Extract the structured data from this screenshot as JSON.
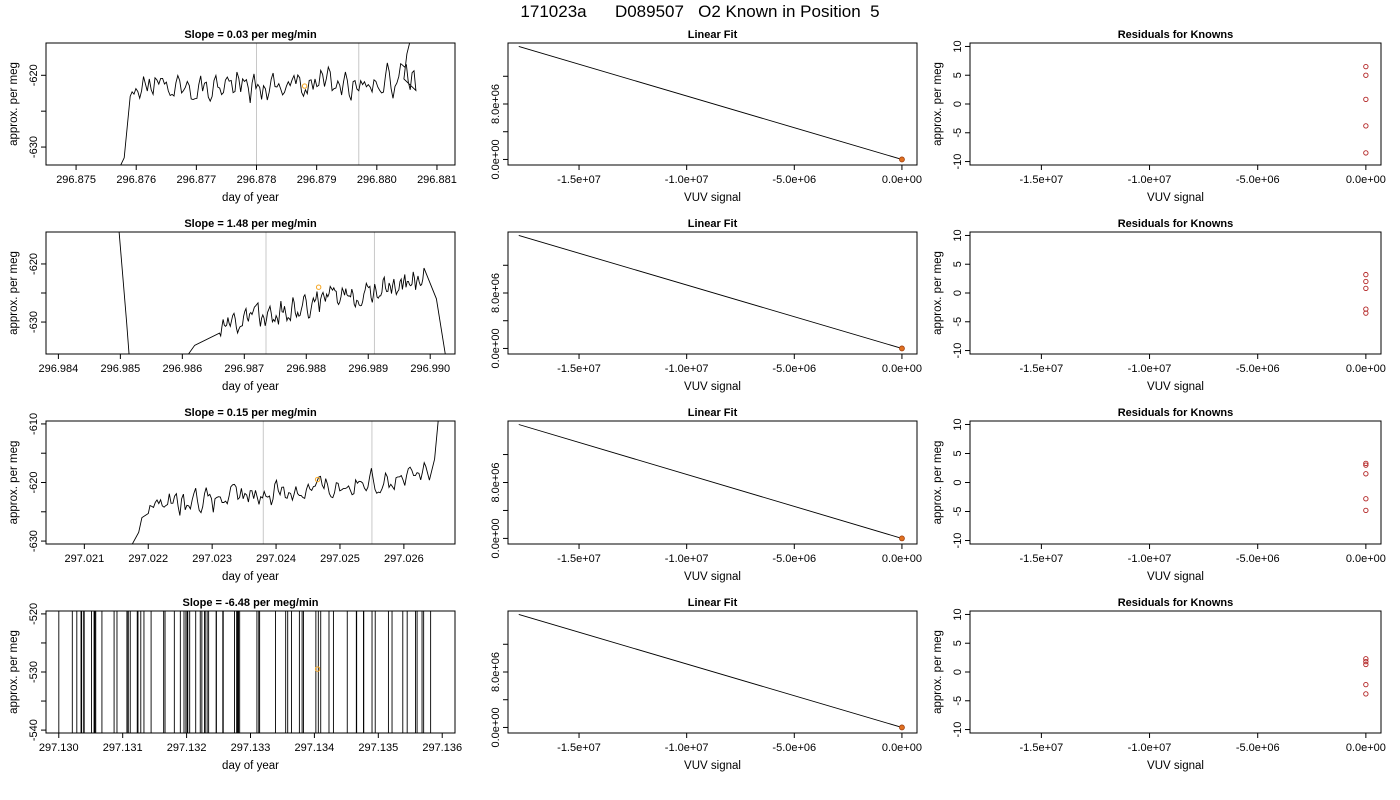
{
  "header": {
    "title": "171023a      D089507   O2 Known in Position  5"
  },
  "chart_data": [
    {
      "type": "line",
      "panel": "time-series",
      "title": "Slope =  0.03  per meg/min",
      "xlabel": "day of year",
      "ylabel": "approx. per meg",
      "xlim": [
        296.8745,
        296.8813
      ],
      "ylim": [
        -632.5,
        -615.5
      ],
      "xticks": [
        296.875,
        296.876,
        296.877,
        296.878,
        296.879,
        296.88,
        296.881
      ],
      "xtick_labels": [
        "296.875",
        "296.876",
        "296.877",
        "296.878",
        "296.879",
        "296.880",
        "296.881"
      ],
      "yticks": [
        -630,
        -625,
        -620
      ],
      "ytick_labels": [
        "-630",
        "",
        "-620"
      ],
      "vlines": [
        296.878,
        296.8797
      ],
      "series": [
        {
          "x0": 296.8759,
          "x1": 296.88065,
          "level": -621.2,
          "trend": 0.8,
          "noise": 1.8,
          "pts": 150,
          "start": [
            [
              296.8756,
              -635.0
            ],
            [
              296.8758,
              -631.5
            ]
          ],
          "end": [
            [
              296.88045,
              -620.5
            ],
            [
              296.8805,
              -617.0
            ],
            [
              296.88065,
              -612.0
            ]
          ]
        }
      ],
      "marker": {
        "x": 296.8788,
        "y": -621.5
      }
    },
    {
      "type": "line",
      "panel": "linear-fit",
      "title": "Linear Fit",
      "xlabel": "VUV signal",
      "ylabel": "",
      "xlim": [
        -18300000,
        700000
      ],
      "ylim": [
        -800000,
        16800000
      ],
      "xticks": [
        -15000000,
        -10000000,
        -5000000,
        0
      ],
      "xtick_labels": [
        "-1.5e+07",
        "-1.0e+07",
        "-5.0e+06",
        "0.0e+00"
      ],
      "yticks": [
        0,
        4000000,
        8000000,
        12000000
      ],
      "ytick_labels": [
        "0.0e+00",
        "",
        "8.0e+06",
        ""
      ],
      "fit_line": [
        [
          -17800000,
          16300000
        ],
        [
          0,
          0
        ]
      ],
      "points": [
        [
          0,
          0
        ]
      ]
    },
    {
      "type": "scatter",
      "panel": "residuals",
      "title": "Residuals for Knowns",
      "xlabel": "VUV signal",
      "ylabel": "approx. per meg",
      "xlim": [
        -18300000,
        700000
      ],
      "ylim": [
        -10.6,
        10.6
      ],
      "xticks": [
        -15000000,
        -10000000,
        -5000000,
        0
      ],
      "xtick_labels": [
        "-1.5e+07",
        "-1.0e+07",
        "-5.0e+06",
        "0.0e+00"
      ],
      "yticks": [
        -10,
        -5,
        0,
        5,
        10
      ],
      "ytick_labels": [
        "-10",
        "-5",
        "0",
        "5",
        "10"
      ],
      "points": [
        [
          0,
          6.5
        ],
        [
          0,
          5.0
        ],
        [
          0,
          0.8
        ],
        [
          0,
          -3.8
        ],
        [
          0,
          -8.5
        ]
      ]
    },
    {
      "type": "line",
      "panel": "time-series",
      "title": "Slope =  1.48  per meg/min",
      "xlabel": "day of year",
      "ylabel": "approx. per meg",
      "xlim": [
        296.9838,
        296.9904
      ],
      "ylim": [
        -635.5,
        -614.5
      ],
      "xticks": [
        296.984,
        296.985,
        296.986,
        296.987,
        296.988,
        296.989,
        296.99
      ],
      "xtick_labels": [
        "296.984",
        "296.985",
        "296.986",
        "296.987",
        "296.988",
        "296.989",
        "296.990"
      ],
      "yticks": [
        -630,
        -625,
        -620
      ],
      "ytick_labels": [
        "-630",
        "",
        "-620"
      ],
      "vlines": [
        296.98735,
        296.9891
      ],
      "series": [
        {
          "x0": 296.9866,
          "x1": 296.9899,
          "level": -626.5,
          "trend": 8.5,
          "noise": 1.7,
          "pts": 170,
          "start": [
            [
              296.98496,
              -612.0
            ],
            [
              296.9851,
              -630.0
            ],
            [
              296.98515,
              -637.0
            ],
            [
              296.986,
              -637.0
            ],
            [
              296.9862,
              -634.0
            ]
          ],
          "end": [
            [
              296.9901,
              -626.0
            ],
            [
              296.99028,
              -638.0
            ]
          ]
        }
      ],
      "marker": {
        "x": 296.9882,
        "y": -624.0
      }
    },
    {
      "type": "line",
      "panel": "linear-fit",
      "title": "Linear Fit",
      "xlabel": "VUV signal",
      "ylabel": "",
      "xlim": [
        -18300000,
        700000
      ],
      "ylim": [
        -800000,
        16800000
      ],
      "xticks": [
        -15000000,
        -10000000,
        -5000000,
        0
      ],
      "xtick_labels": [
        "-1.5e+07",
        "-1.0e+07",
        "-5.0e+06",
        "0.0e+00"
      ],
      "yticks": [
        0,
        4000000,
        8000000,
        12000000
      ],
      "ytick_labels": [
        "0.0e+00",
        "",
        "8.0e+06",
        ""
      ],
      "fit_line": [
        [
          -17800000,
          16300000
        ],
        [
          0,
          0
        ]
      ],
      "points": [
        [
          0,
          0
        ]
      ]
    },
    {
      "type": "scatter",
      "panel": "residuals",
      "title": "Residuals for Knowns",
      "xlabel": "VUV signal",
      "ylabel": "approx. per meg",
      "xlim": [
        -18300000,
        700000
      ],
      "ylim": [
        -10.6,
        10.6
      ],
      "xticks": [
        -15000000,
        -10000000,
        -5000000,
        0
      ],
      "xtick_labels": [
        "-1.5e+07",
        "-1.0e+07",
        "-5.0e+06",
        "0.0e+00"
      ],
      "yticks": [
        -10,
        -5,
        0,
        5,
        10
      ],
      "ytick_labels": [
        "-10",
        "-5",
        "0",
        "5",
        "10"
      ],
      "points": [
        [
          0,
          3.2
        ],
        [
          0,
          2.0
        ],
        [
          0,
          0.8
        ],
        [
          0,
          -2.8
        ],
        [
          0,
          -3.5
        ]
      ]
    },
    {
      "type": "line",
      "panel": "time-series",
      "title": "Slope =  0.15  per meg/min",
      "xlabel": "day of year",
      "ylabel": "approx. per meg",
      "xlim": [
        297.0204,
        297.0268
      ],
      "ylim": [
        -630.5,
        -609.5
      ],
      "xticks": [
        297.021,
        297.022,
        297.023,
        297.024,
        297.025,
        297.026
      ],
      "xtick_labels": [
        "297.021",
        "297.022",
        "297.023",
        "297.024",
        "297.025",
        "297.026"
      ],
      "yticks": [
        -630,
        -625,
        -620,
        -615,
        -610
      ],
      "ytick_labels": [
        "-630",
        "",
        "-620",
        "",
        "-610"
      ],
      "vlines": [
        297.0238,
        297.0255
      ],
      "series": [
        {
          "x0": 297.022,
          "x1": 297.0264,
          "level": -621.5,
          "trend": 5.5,
          "noise": 1.7,
          "pts": 160,
          "start": [
            [
              297.0217,
              -631.5
            ],
            [
              297.02185,
              -628.5
            ],
            [
              297.0219,
              -626.0
            ]
          ],
          "end": [
            [
              297.02648,
              -616.0
            ],
            [
              297.02655,
              -608.0
            ]
          ]
        }
      ],
      "marker": {
        "x": 297.02465,
        "y": -619.5
      }
    },
    {
      "type": "line",
      "panel": "linear-fit",
      "title": "Linear Fit",
      "xlabel": "VUV signal",
      "ylabel": "",
      "xlim": [
        -18300000,
        700000
      ],
      "ylim": [
        -800000,
        16800000
      ],
      "xticks": [
        -15000000,
        -10000000,
        -5000000,
        0
      ],
      "xtick_labels": [
        "-1.5e+07",
        "-1.0e+07",
        "-5.0e+06",
        "0.0e+00"
      ],
      "yticks": [
        0,
        4000000,
        8000000,
        12000000
      ],
      "ytick_labels": [
        "0.0e+00",
        "",
        "8.0e+06",
        ""
      ],
      "fit_line": [
        [
          -17800000,
          16300000
        ],
        [
          0,
          0
        ]
      ],
      "points": [
        [
          0,
          0
        ]
      ]
    },
    {
      "type": "scatter",
      "panel": "residuals",
      "title": "Residuals for Knowns",
      "xlabel": "VUV signal",
      "ylabel": "approx. per meg",
      "xlim": [
        -18300000,
        700000
      ],
      "ylim": [
        -10.6,
        10.6
      ],
      "xticks": [
        -15000000,
        -10000000,
        -5000000,
        0
      ],
      "xtick_labels": [
        "-1.5e+07",
        "-1.0e+07",
        "-5.0e+06",
        "0.0e+00"
      ],
      "yticks": [
        -10,
        -5,
        0,
        5,
        10
      ],
      "ytick_labels": [
        "-10",
        "-5",
        "0",
        "5",
        "10"
      ],
      "points": [
        [
          0,
          3.3
        ],
        [
          0,
          3.0
        ],
        [
          0,
          1.5
        ],
        [
          0,
          -2.8
        ],
        [
          0,
          -4.8
        ]
      ]
    },
    {
      "type": "line",
      "panel": "time-series",
      "title": "Slope =  -6.48  per meg/min",
      "xlabel": "day of year",
      "ylabel": "approx. per meg",
      "xlim": [
        297.1298,
        297.1362
      ],
      "ylim": [
        -540.5,
        -519.5
      ],
      "xticks": [
        297.13,
        297.131,
        297.132,
        297.133,
        297.134,
        297.135,
        297.136
      ],
      "xtick_labels": [
        "297.130",
        "297.131",
        "297.132",
        "297.133",
        "297.134",
        "297.135",
        "297.136"
      ],
      "yticks": [
        -540,
        -535,
        -530,
        -525,
        -520
      ],
      "ytick_labels": [
        "-540",
        "",
        "-530",
        "",
        "-520"
      ],
      "spikes": {
        "x0": 297.13,
        "x1": 297.1359,
        "count": 82
      },
      "marker": {
        "x": 297.13405,
        "y": -529.5
      }
    },
    {
      "type": "line",
      "panel": "linear-fit",
      "title": "Linear Fit",
      "xlabel": "VUV signal",
      "ylabel": "",
      "xlim": [
        -18300000,
        700000
      ],
      "ylim": [
        -800000,
        16800000
      ],
      "xticks": [
        -15000000,
        -10000000,
        -5000000,
        0
      ],
      "xtick_labels": [
        "-1.5e+07",
        "-1.0e+07",
        "-5.0e+06",
        "0.0e+00"
      ],
      "yticks": [
        0,
        4000000,
        8000000,
        12000000
      ],
      "ytick_labels": [
        "0.0e+00",
        "",
        "8.0e+06",
        ""
      ],
      "fit_line": [
        [
          -17800000,
          16300000
        ],
        [
          0,
          0
        ]
      ],
      "points": [
        [
          0,
          0
        ]
      ]
    },
    {
      "type": "scatter",
      "panel": "residuals",
      "title": "Residuals for Knowns",
      "xlabel": "VUV signal",
      "ylabel": "approx. per meg",
      "xlim": [
        -18300000,
        700000
      ],
      "ylim": [
        -10.6,
        10.6
      ],
      "xticks": [
        -15000000,
        -10000000,
        -5000000,
        0
      ],
      "xtick_labels": [
        "-1.5e+07",
        "-1.0e+07",
        "-5.0e+06",
        "0.0e+00"
      ],
      "yticks": [
        -10,
        -5,
        0,
        5,
        10
      ],
      "ytick_labels": [
        "-10",
        "-5",
        "0",
        "5",
        "10"
      ],
      "points": [
        [
          0,
          2.3
        ],
        [
          0,
          1.8
        ],
        [
          0,
          1.3
        ],
        [
          0,
          -2.2
        ],
        [
          0,
          -3.8
        ]
      ]
    }
  ]
}
